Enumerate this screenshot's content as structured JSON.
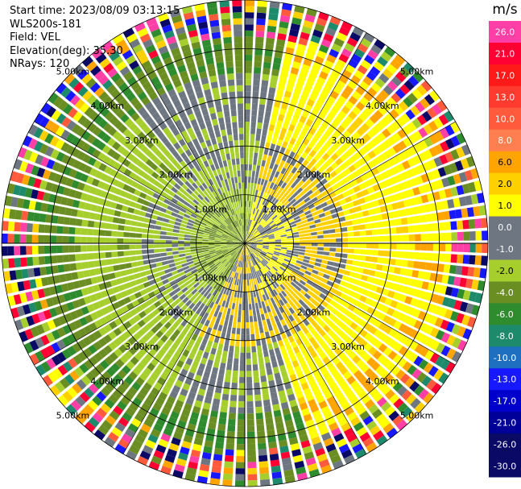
{
  "header": {
    "start_time": "Start time: 2023/08/09 03:13:15",
    "instrument": "WLS200s-181",
    "field": "Field: VEL",
    "elevation": "Elevation(deg): 35.30",
    "nrays": "NRays: 120"
  },
  "colorbar": {
    "unit": "m/s",
    "ticks": [
      "26.0",
      "21.0",
      "17.0",
      "13.0",
      "10.0",
      "8.0",
      "6.0",
      "2.0",
      "1.0",
      "0.0",
      "-1.0",
      "-2.0",
      "-4.0",
      "-6.0",
      "-8.0",
      "-10.0",
      "-13.0",
      "-17.0",
      "-21.0",
      "-26.0",
      "-30.0"
    ],
    "colors": [
      "#ff3fa6",
      "#ff0033",
      "#ff1a1a",
      "#ff3b2f",
      "#ff5a3c",
      "#ff7f50",
      "#ffa400",
      "#ffd000",
      "#ffff00",
      "#6e7781",
      "#6e7781",
      "#a6cf2d",
      "#6b8e23",
      "#2e8b2e",
      "#1d8a6c",
      "#1e6fc0",
      "#1818ff",
      "#0000cc",
      "#000099",
      "#0a0a66",
      "#0a0a66"
    ]
  },
  "chart_data": {
    "type": "heatmap",
    "subtype": "radar-ppi",
    "field": "VEL",
    "units": "m/s",
    "elevation_deg": 35.3,
    "nrays": 120,
    "range_ring_labels": [
      "1.00km",
      "2.00km",
      "3.00km",
      "4.00km",
      "5.00km"
    ],
    "range_rings_km": [
      1,
      2,
      3,
      4,
      5
    ],
    "color_scale_m_s": [
      26,
      21,
      17,
      13,
      10,
      8,
      6,
      2,
      1,
      0,
      -1,
      -2,
      -4,
      -6,
      -8,
      -10,
      -13,
      -17,
      -21,
      -26,
      -30
    ]
  }
}
